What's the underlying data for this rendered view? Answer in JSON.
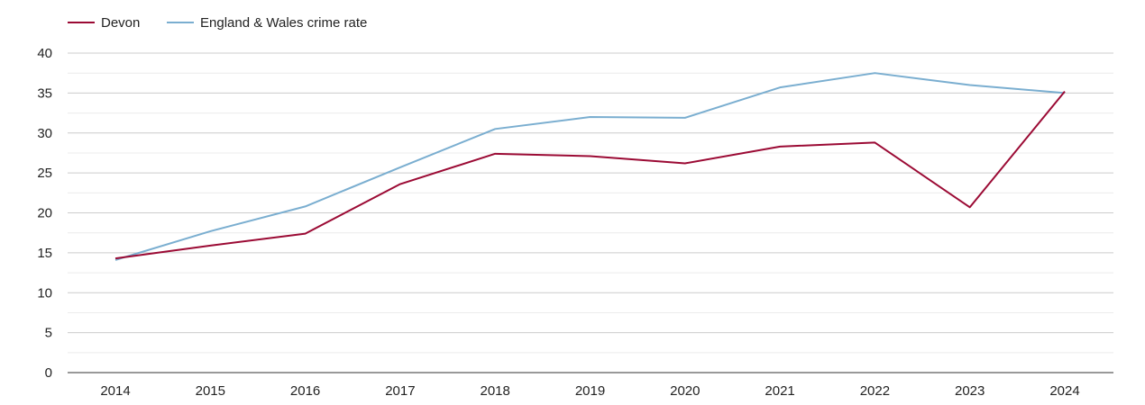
{
  "chart_data": {
    "type": "line",
    "title": "",
    "xlabel": "",
    "ylabel": "",
    "x": [
      "2014",
      "2015",
      "2016",
      "2017",
      "2018",
      "2019",
      "2020",
      "2021",
      "2022",
      "2023",
      "2024"
    ],
    "ylim": [
      0,
      40
    ],
    "yticks": [
      0,
      5,
      10,
      15,
      20,
      25,
      30,
      35,
      40
    ],
    "grid": true,
    "legend_position": "top-left",
    "series": [
      {
        "name": "Devon",
        "color": "#9b0a34",
        "values": [
          14.3,
          15.9,
          17.4,
          23.6,
          27.4,
          27.1,
          26.2,
          28.3,
          28.8,
          20.7,
          35.2
        ]
      },
      {
        "name": "England & Wales crime rate",
        "color": "#7aaed0",
        "values": [
          14.1,
          17.7,
          20.8,
          25.7,
          30.5,
          32.0,
          31.9,
          35.7,
          37.5,
          36.0,
          35.0
        ]
      }
    ]
  }
}
